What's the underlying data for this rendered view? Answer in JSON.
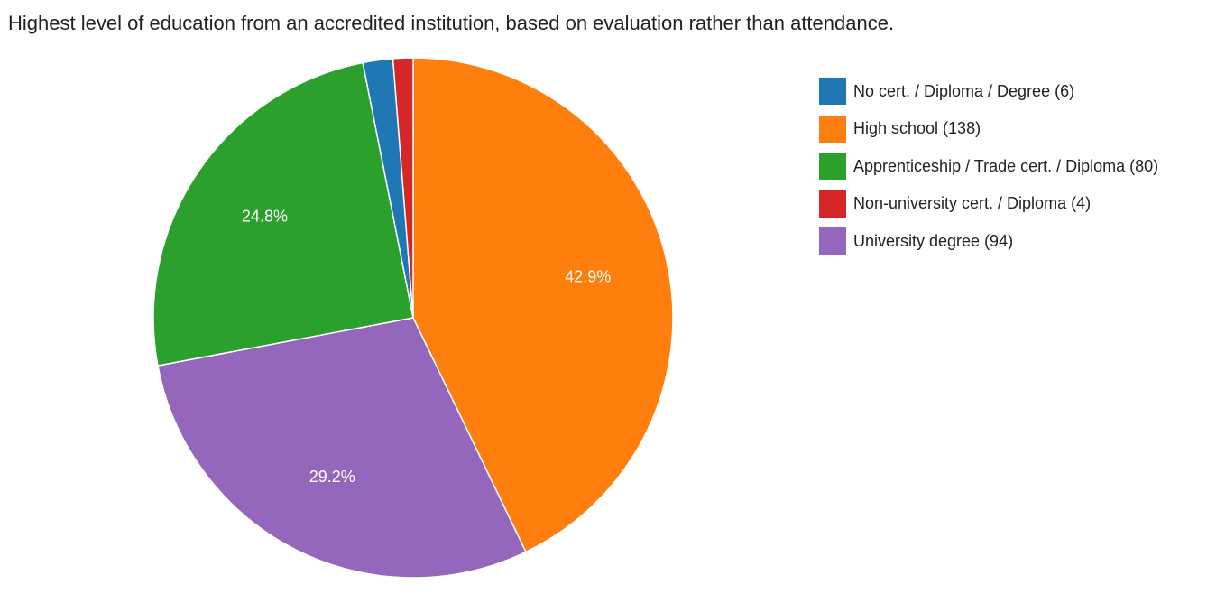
{
  "chart_data": {
    "type": "pie",
    "title": "Highest level of education from an accredited institution, based on evaluation rather than attendance.",
    "legend_position": "right",
    "slices": [
      {
        "label": "No cert. / Diploma / Degree (6)",
        "value": 6,
        "color": "#1f77b4",
        "pct_label": ""
      },
      {
        "label": "High school (138)",
        "value": 138,
        "color": "#ff7f0e",
        "pct_label": "42.9%"
      },
      {
        "label": "Apprenticeship / Trade cert. / Diploma (80)",
        "value": 80,
        "color": "#2ca02c",
        "pct_label": "24.8%"
      },
      {
        "label": "Non-university cert. / Diploma (4)",
        "value": 4,
        "color": "#d62728",
        "pct_label": ""
      },
      {
        "label": "University degree (94)",
        "value": 94,
        "color": "#9467bd",
        "pct_label": "29.2%"
      }
    ],
    "drawing_order": [
      "High school (138)",
      "University degree (94)",
      "Apprenticeship / Trade cert. / Diploma (80)",
      "No cert. / Diploma / Degree (6)",
      "Non-university cert. / Diploma (4)"
    ],
    "direction": "clockwise",
    "start": "top"
  }
}
